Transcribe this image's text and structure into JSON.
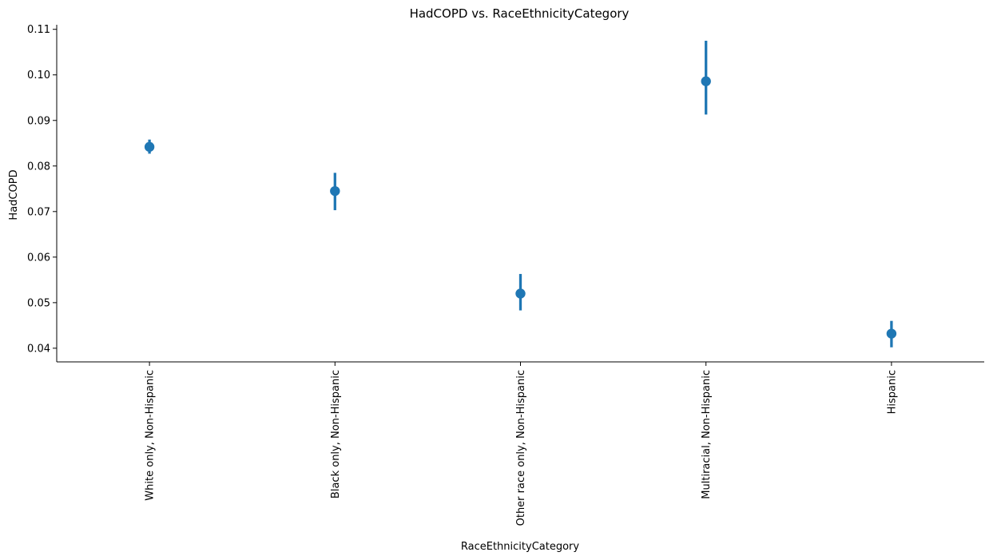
{
  "chart_data": {
    "type": "point",
    "title": "HadCOPD vs. RaceEthnicityCategory",
    "xlabel": "RaceEthnicityCategory",
    "ylabel": "HadCOPD",
    "categories": [
      "White only, Non-Hispanic",
      "Black only, Non-Hispanic",
      "Other race only, Non-Hispanic",
      "Multiracial, Non-Hispanic",
      "Hispanic"
    ],
    "values": [
      0.0842,
      0.0745,
      0.052,
      0.0986,
      0.0432
    ],
    "ci_low": [
      0.0827,
      0.0703,
      0.0483,
      0.0913,
      0.0402
    ],
    "ci_high": [
      0.0858,
      0.0785,
      0.0563,
      0.1075,
      0.046
    ],
    "ylim": [
      0.037,
      0.111
    ],
    "yticks": [
      0.04,
      0.05,
      0.06,
      0.07,
      0.08,
      0.09,
      0.1,
      0.11
    ],
    "ytick_labels": [
      "0.04",
      "0.05",
      "0.06",
      "0.07",
      "0.08",
      "0.09",
      "0.10",
      "0.11"
    ],
    "color": "#1f77b4",
    "grid": false,
    "legend": "none"
  }
}
